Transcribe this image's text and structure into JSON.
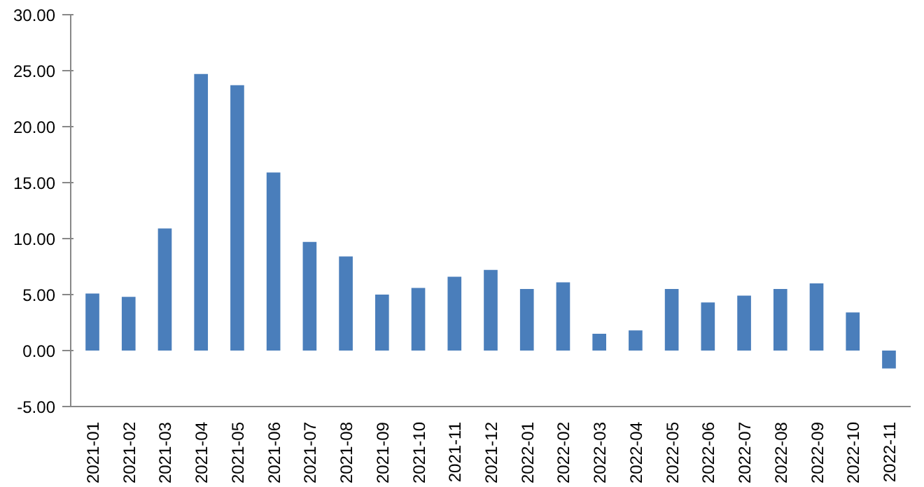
{
  "chart_data": {
    "type": "bar",
    "categories": [
      "2021-01",
      "2021-02",
      "2021-03",
      "2021-04",
      "2021-05",
      "2021-06",
      "2021-07",
      "2021-08",
      "2021-09",
      "2021-10",
      "2021-11",
      "2021-12",
      "2022-01",
      "2022-02",
      "2022-03",
      "2022-04",
      "2022-05",
      "2022-06",
      "2022-07",
      "2022-08",
      "2022-09",
      "2022-10",
      "2022-11"
    ],
    "values": [
      5.1,
      4.8,
      10.9,
      24.7,
      23.7,
      15.9,
      9.7,
      8.4,
      5.0,
      5.6,
      6.6,
      7.2,
      5.5,
      6.1,
      1.5,
      1.8,
      5.5,
      4.3,
      4.9,
      5.5,
      6.0,
      3.4,
      -1.6
    ],
    "color": "#4a7ebb",
    "ylim": [
      -5,
      30
    ],
    "yticks": [
      {
        "value": -5,
        "label": "-5.00"
      },
      {
        "value": 0,
        "label": "0.00"
      },
      {
        "value": 5,
        "label": "5.00"
      },
      {
        "value": 10,
        "label": "10.00"
      },
      {
        "value": 15,
        "label": "15.00"
      },
      {
        "value": 20,
        "label": "20.00"
      },
      {
        "value": 25,
        "label": "25.00"
      },
      {
        "value": 30,
        "label": "30.00"
      }
    ],
    "grid": false
  }
}
